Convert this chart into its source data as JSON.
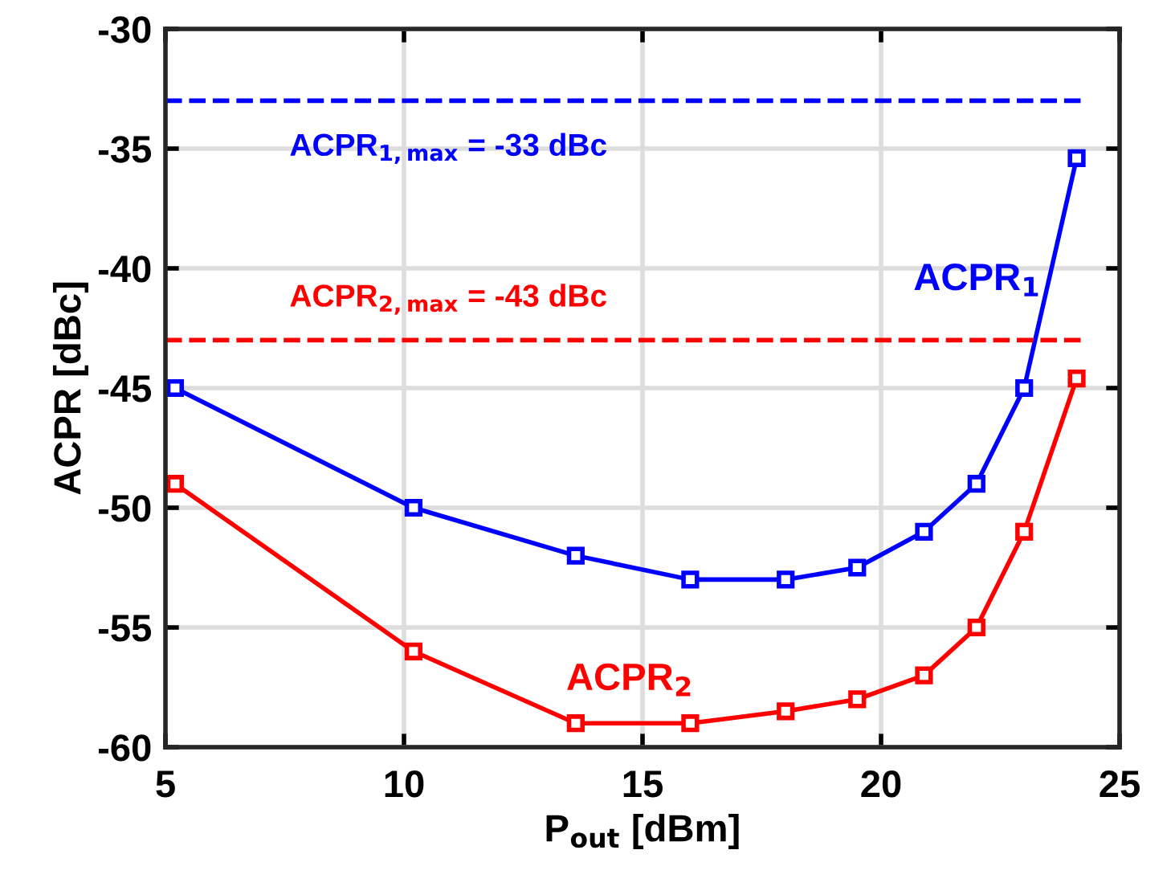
{
  "chart_data": {
    "type": "line",
    "xlabel": "P$_{out}$ [dBm]",
    "ylabel": "ACPR [dBc]",
    "xlim": [
      5,
      25
    ],
    "xticks": [
      5,
      10,
      15,
      20,
      25
    ],
    "ylim": [
      -60,
      -30
    ],
    "yticks": [
      -60,
      -55,
      -50,
      -45,
      -40,
      -35,
      -30
    ],
    "grid": true,
    "marker": "square",
    "line_style": "solid",
    "legend": false,
    "x": [
      5.2,
      10.2,
      13.6,
      16.0,
      18.0,
      19.5,
      20.9,
      22.0,
      23.0,
      24.1
    ],
    "series": [
      {
        "name": "ACPR$_{1}$",
        "color": "#0000ff",
        "values": [
          -45,
          -50,
          -52,
          -53,
          -53,
          -52.5,
          -51,
          -49,
          -45,
          -35.4
        ]
      },
      {
        "name": "ACPR$_{2}$",
        "color": "#ff0000",
        "values": [
          -49,
          -56,
          -59,
          -59,
          -58.5,
          -58,
          -57,
          -55,
          -51,
          -44.6
        ]
      }
    ],
    "ref_lines": [
      {
        "axis": "y",
        "value": -33,
        "label": "ACPR$_{1,max}$ = -33 dBc",
        "color": "#0000ff",
        "line_style": "dashed"
      },
      {
        "axis": "y",
        "value": -43,
        "label": "ACPR$_{2,max}$ = -43 dBc",
        "color": "#ff0000",
        "line_style": "dashed"
      }
    ]
  }
}
